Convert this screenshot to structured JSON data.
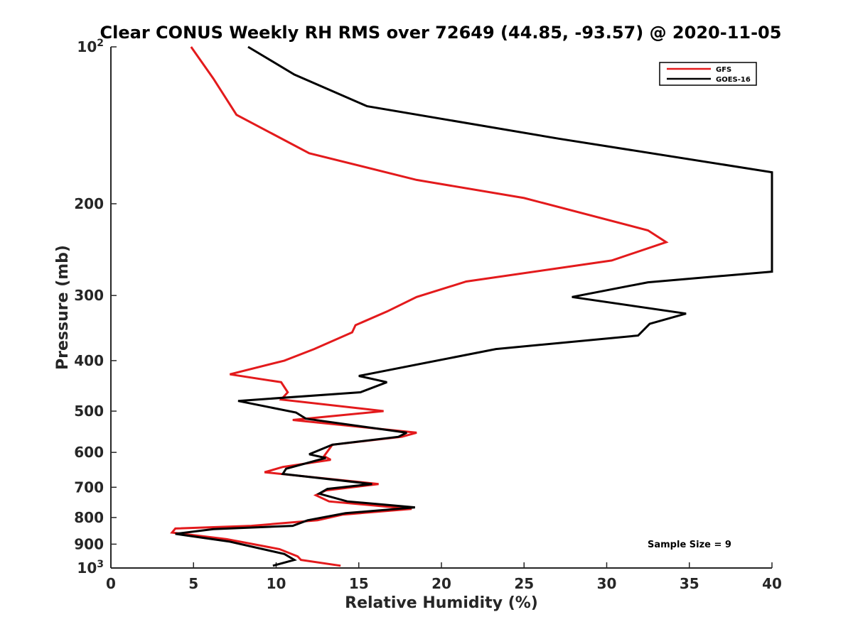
{
  "chart_data": {
    "type": "line",
    "title": "Clear CONUS Weekly RH RMS over 72649 (44.85, -93.57) @ 2020-11-05",
    "xlabel": "Relative Humidity (%)",
    "ylabel": "Pressure (mb)",
    "xlim": [
      0,
      40
    ],
    "ylim": [
      100,
      1000
    ],
    "y_scale": "log",
    "y_reversed": true,
    "x_ticks": [
      "0",
      "5",
      "10",
      "15",
      "20",
      "25",
      "30",
      "35",
      "40"
    ],
    "y_ticks": [
      {
        "value": 100,
        "base": "10",
        "exp": "2"
      },
      {
        "value": 200,
        "label": "200"
      },
      {
        "value": 300,
        "label": "300"
      },
      {
        "value": 400,
        "label": "400"
      },
      {
        "value": 500,
        "label": "500"
      },
      {
        "value": 600,
        "label": "600"
      },
      {
        "value": 700,
        "label": "700"
      },
      {
        "value": 800,
        "label": "800"
      },
      {
        "value": 900,
        "label": "900"
      },
      {
        "value": 1000,
        "base": "10",
        "exp": "3"
      }
    ],
    "grid": false,
    "legend": "top-right",
    "annotation": "Sample Size = 9",
    "series": [
      {
        "name": "GFS",
        "color": "#e31a1c",
        "points": [
          [
            4.85,
            100
          ],
          [
            6.2,
            115
          ],
          [
            7.6,
            135
          ],
          [
            12.0,
            160
          ],
          [
            18.5,
            180
          ],
          [
            25.0,
            195
          ],
          [
            32.5,
            225
          ],
          [
            33.6,
            237
          ],
          [
            30.3,
            257
          ],
          [
            21.5,
            282
          ],
          [
            18.5,
            302
          ],
          [
            16.7,
            322
          ],
          [
            14.8,
            342
          ],
          [
            14.6,
            353
          ],
          [
            12.3,
            380
          ],
          [
            10.5,
            400
          ],
          [
            7.2,
            425
          ],
          [
            10.3,
            440
          ],
          [
            10.7,
            460
          ],
          [
            10.3,
            475
          ],
          [
            16.5,
            500
          ],
          [
            11.0,
            520
          ],
          [
            18.5,
            550
          ],
          [
            17.6,
            560
          ],
          [
            13.4,
            580
          ],
          [
            12.9,
            610
          ],
          [
            13.3,
            620
          ],
          [
            10.4,
            640
          ],
          [
            9.3,
            655
          ],
          [
            16.2,
            690
          ],
          [
            13.0,
            710
          ],
          [
            12.4,
            725
          ],
          [
            13.2,
            745
          ],
          [
            18.2,
            770
          ],
          [
            14.0,
            790
          ],
          [
            12.5,
            810
          ],
          [
            8.5,
            830
          ],
          [
            3.9,
            840
          ],
          [
            3.7,
            855
          ],
          [
            7.0,
            880
          ],
          [
            10.2,
            920
          ],
          [
            11.3,
            950
          ],
          [
            11.5,
            965
          ],
          [
            13.9,
            990
          ]
        ]
      },
      {
        "name": "GOES-16",
        "color": "#000000",
        "points": [
          [
            8.3,
            100
          ],
          [
            11.1,
            113
          ],
          [
            15.5,
            130
          ],
          [
            27.1,
            150
          ],
          [
            40.0,
            174
          ],
          [
            40.0,
            270
          ],
          [
            32.5,
            283
          ],
          [
            27.9,
            302
          ],
          [
            34.8,
            325
          ],
          [
            32.6,
            340
          ],
          [
            31.9,
            358
          ],
          [
            23.3,
            380
          ],
          [
            15.0,
            428
          ],
          [
            16.7,
            440
          ],
          [
            15.1,
            460
          ],
          [
            7.7,
            478
          ],
          [
            11.2,
            503
          ],
          [
            11.8,
            517
          ],
          [
            17.9,
            550
          ],
          [
            17.4,
            560
          ],
          [
            13.4,
            580
          ],
          [
            12.0,
            605
          ],
          [
            13.0,
            615
          ],
          [
            10.6,
            645
          ],
          [
            10.4,
            660
          ],
          [
            15.8,
            690
          ],
          [
            13.1,
            705
          ],
          [
            12.6,
            720
          ],
          [
            14.3,
            745
          ],
          [
            18.4,
            765
          ],
          [
            14.2,
            785
          ],
          [
            11.9,
            810
          ],
          [
            11.0,
            830
          ],
          [
            6.2,
            842
          ],
          [
            3.9,
            860
          ],
          [
            7.2,
            890
          ],
          [
            10.5,
            940
          ],
          [
            11.1,
            965
          ],
          [
            9.8,
            990
          ]
        ]
      }
    ]
  }
}
